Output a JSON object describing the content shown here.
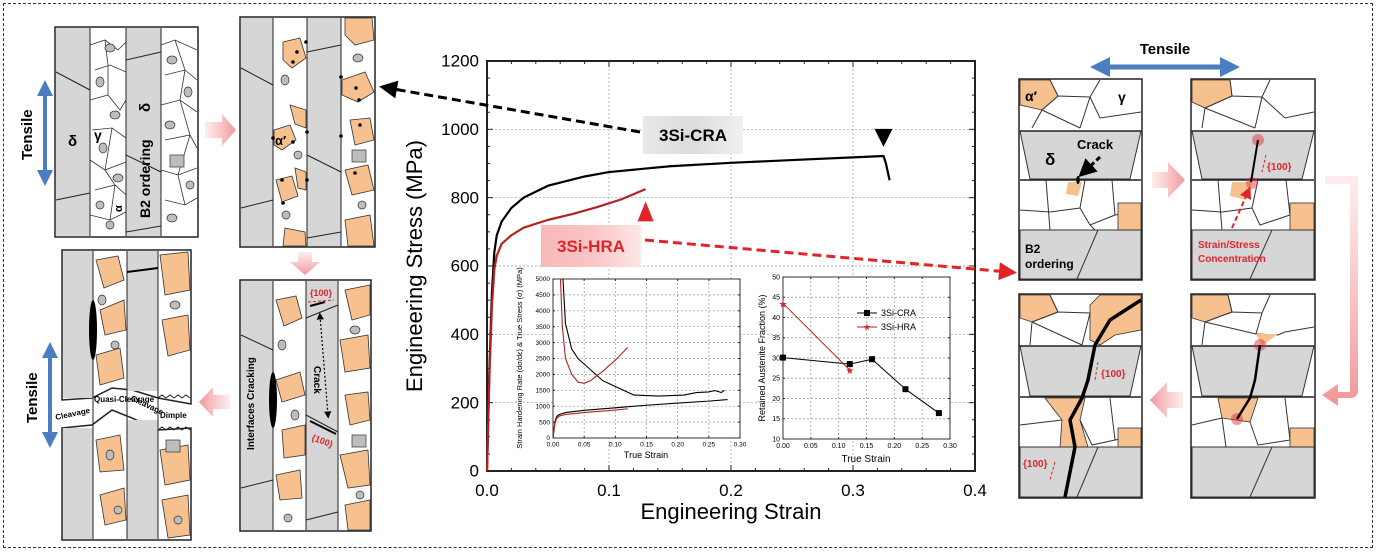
{
  "figure": {
    "colors": {
      "orange_grain": "#F7C08F",
      "gray_phase": "#D6D6D6",
      "accent_red": "#E0242A",
      "dark_red": "#B22222",
      "tensile_blue": "#4A7EC0",
      "pink_arrow": "#F4A6A8",
      "black": "#000000"
    },
    "left_panels": {
      "tensile_label": "Tensile",
      "panel1": {
        "delta1": "δ",
        "gamma": "γ",
        "delta2": "δ",
        "b2": "B2 ordering",
        "alpha": "α"
      },
      "panel2": {
        "alpha_prime": "α′"
      },
      "panel3": {
        "hkl_top": "{100}",
        "hkl_bottom": "{100}",
        "crack": "Crack",
        "interfaces": "Interfaces Cracking"
      },
      "panel4": {
        "cleavage_left": "Cleavage",
        "quasi": "Quasi-Cleavage",
        "cleavage_right": "Cleavage",
        "dimple": "Dimple",
        "tensile_label": "Tensile"
      }
    },
    "right_panels": {
      "tensile_label": "Tensile",
      "panel1": {
        "alpha_prime": "α′",
        "gamma": "γ",
        "delta": "δ",
        "crack": "Crack",
        "b2_line1": "B2",
        "b2_line2": "ordering"
      },
      "panel2": {
        "hkl": "{100}",
        "conc_line1": "Strain/Stress",
        "conc_line2": "Concentration"
      },
      "panel3": {
        "hkl_top": "{100}",
        "hkl_bottom": "{100}"
      }
    },
    "callouts": {
      "cra": "3Si-CRA",
      "hra": "3Si-HRA"
    }
  },
  "chart_data": [
    {
      "id": "main",
      "type": "line",
      "title": "",
      "xlabel": "Engineering Strain",
      "ylabel": "Engineering Stress (MPa)",
      "xlim": [
        0,
        0.4
      ],
      "ylim": [
        0,
        1200
      ],
      "xticks": [
        0.0,
        0.1,
        0.2,
        0.3,
        0.4
      ],
      "xtick_labels": [
        "0.0",
        "0.1",
        "0.2",
        "0.3",
        "0.4"
      ],
      "yticks": [
        0,
        200,
        400,
        600,
        800,
        1000,
        1200
      ],
      "ytick_labels": [
        "0",
        "200",
        "400",
        "600",
        "800",
        "1000",
        "1200"
      ],
      "grid": true,
      "series": [
        {
          "name": "3Si-CRA",
          "color": "#000000",
          "x": [
            0,
            0.002,
            0.004,
            0.006,
            0.008,
            0.012,
            0.02,
            0.03,
            0.05,
            0.08,
            0.1,
            0.15,
            0.2,
            0.25,
            0.3,
            0.325,
            0.327,
            0.33
          ],
          "y": [
            0,
            300,
            520,
            640,
            690,
            730,
            770,
            800,
            835,
            862,
            875,
            892,
            902,
            910,
            918,
            922,
            900,
            851
          ]
        },
        {
          "name": "3Si-HRA",
          "color": "#B22222",
          "x": [
            0,
            0.002,
            0.004,
            0.006,
            0.008,
            0.012,
            0.02,
            0.03,
            0.05,
            0.07,
            0.09,
            0.11,
            0.13
          ],
          "y": [
            0,
            280,
            480,
            590,
            630,
            665,
            690,
            712,
            735,
            752,
            772,
            795,
            825
          ]
        }
      ],
      "markers": [
        {
          "series": "3Si-CRA",
          "symbol": "down-triangle",
          "x": 0.325,
          "y": 975
        },
        {
          "series": "3Si-HRA",
          "symbol": "up-triangle",
          "x": 0.13,
          "y": 760
        }
      ]
    },
    {
      "id": "inset_hardening",
      "type": "line",
      "xlabel": "True Strain",
      "ylabel": "Strain Hardening Rate (dσ/dε) & True Stress (σ) (MPa)",
      "xlim": [
        0,
        0.3
      ],
      "ylim": [
        0,
        5000
      ],
      "xticks": [
        0,
        0.05,
        0.1,
        0.15,
        0.2,
        0.25,
        0.3
      ],
      "xtick_labels": [
        "0.00",
        "0.05",
        "0.10",
        "0.15",
        "0.20",
        "0.25",
        "0.30"
      ],
      "yticks": [
        0,
        500,
        1000,
        1500,
        2000,
        2500,
        3000,
        3500,
        4000,
        4500,
        5000
      ],
      "ytick_labels": [
        "0",
        "500",
        "1000",
        "1500",
        "2000",
        "2500",
        "3000",
        "3500",
        "4000",
        "4500",
        "5000"
      ],
      "grid": true,
      "series": [
        {
          "name": "3Si-CRA hardening rate",
          "color": "#000000",
          "x": [
            0.016,
            0.02,
            0.03,
            0.04,
            0.06,
            0.08,
            0.1,
            0.13,
            0.17,
            0.21,
            0.23,
            0.25,
            0.26,
            0.27,
            0.275
          ],
          "y": [
            5000,
            3600,
            2800,
            2500,
            2150,
            1800,
            1620,
            1350,
            1320,
            1350,
            1430,
            1450,
            1490,
            1430,
            1500
          ]
        },
        {
          "name": "3Si-HRA hardening rate",
          "color": "#B22222",
          "x": [
            0.012,
            0.015,
            0.02,
            0.03,
            0.04,
            0.05,
            0.06,
            0.08,
            0.1,
            0.11,
            0.12
          ],
          "y": [
            5000,
            3500,
            2500,
            2000,
            1760,
            1720,
            1800,
            2100,
            2450,
            2650,
            2850
          ]
        },
        {
          "name": "3Si-CRA true stress",
          "color": "#000000",
          "x": [
            0,
            0.003,
            0.006,
            0.01,
            0.02,
            0.05,
            0.1,
            0.15,
            0.2,
            0.25,
            0.28
          ],
          "y": [
            0,
            500,
            680,
            740,
            800,
            870,
            950,
            1030,
            1100,
            1160,
            1210
          ]
        },
        {
          "name": "3Si-HRA true stress",
          "color": "#B22222",
          "x": [
            0,
            0.003,
            0.006,
            0.01,
            0.02,
            0.05,
            0.1,
            0.12
          ],
          "y": [
            0,
            450,
            620,
            690,
            740,
            800,
            880,
            920
          ]
        }
      ]
    },
    {
      "id": "inset_austenite",
      "type": "line",
      "xlabel": "True Strain",
      "ylabel": "Retained Austenite Fraction (%)",
      "xlim": [
        0,
        0.3
      ],
      "ylim": [
        10,
        50
      ],
      "xticks": [
        0,
        0.05,
        0.1,
        0.15,
        0.2,
        0.25,
        0.3
      ],
      "xtick_labels": [
        "0.00",
        "0.05",
        "0.10",
        "0.15",
        "0.20",
        "0.25",
        "0.30"
      ],
      "yticks": [
        10,
        15,
        20,
        25,
        30,
        35,
        40,
        45,
        50
      ],
      "ytick_labels": [
        "10",
        "15",
        "20",
        "25",
        "30",
        "35",
        "40",
        "45",
        "50"
      ],
      "grid": true,
      "legend": "top-right",
      "series": [
        {
          "name": "3Si-CRA",
          "color": "#000000",
          "marker": "square",
          "x": [
            0.0,
            0.12,
            0.16,
            0.22,
            0.28
          ],
          "y": [
            30.1,
            28.5,
            29.7,
            22.3,
            16.4
          ]
        },
        {
          "name": "3Si-HRA",
          "color": "#B22222",
          "marker": "star",
          "x": [
            0.0,
            0.12
          ],
          "y": [
            43.5,
            27.0
          ]
        }
      ]
    }
  ]
}
